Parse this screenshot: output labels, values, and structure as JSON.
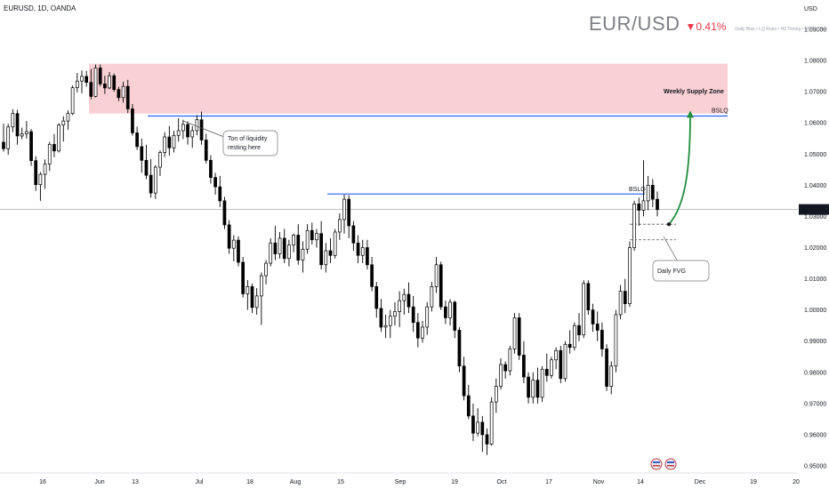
{
  "header": {
    "symbol_line": "EURUSD, 1D, OANDA",
    "pair": "EUR/USD",
    "change": "▼0.41%",
    "tags": "Daily Bias • LQ Runs • HZ Timing • MSS • Disc",
    "currency": "USD"
  },
  "colors": {
    "up": "#ffffff",
    "down": "#000000",
    "wick": "#000000",
    "supply_zone": "#f9d0d3",
    "bslq_line": "#2962ff",
    "arrow": "#1e8e3e",
    "price_badge": "#131722"
  },
  "annotations": {
    "supply_zone_label": "Weekly Supply Zone",
    "bslq_upper": "BSLQ",
    "bslq_lower": "BSLQ",
    "liquidity_note_line1": "Ton of liquidity",
    "liquidity_note_line2": "resting here",
    "fvg_note": "Daily FVG",
    "last_price": "1.03223"
  },
  "chart_data": {
    "type": "candlestick",
    "y_axis": {
      "range": [
        0.947,
        1.1
      ],
      "ticks": [
        "1.09000",
        "1.08000",
        "1.07000",
        "1.06000",
        "1.05000",
        "1.04000",
        "1.03000",
        "1.02000",
        "1.01000",
        "1.00000",
        "0.99000",
        "0.98000",
        "0.97000",
        "0.96000",
        "0.95000"
      ]
    },
    "x_axis": {
      "ticks": [
        "16",
        "Jun",
        "13",
        "Jul",
        "18",
        "Aug",
        "15",
        "Sep",
        "19",
        "Oct",
        "17",
        "Nov",
        "14",
        "Dec",
        "19",
        "20"
      ]
    },
    "supply_zone": [
      1.063,
      1.079
    ],
    "bslq_upper_level": 1.0622,
    "bslq_lower_level": 1.0372,
    "fvg_levels": [
      1.0275,
      1.0225
    ],
    "projection_target": 1.0645,
    "last_price": 1.03223,
    "candles": [
      [
        1.0538,
        1.0597,
        1.0508,
        1.0517
      ],
      [
        1.0517,
        1.0597,
        1.0498,
        1.0587
      ],
      [
        1.0587,
        1.0644,
        1.057,
        1.063
      ],
      [
        1.063,
        1.0642,
        1.053,
        1.0558
      ],
      [
        1.0558,
        1.0585,
        1.0548,
        1.0565
      ],
      [
        1.0565,
        1.0606,
        1.055,
        1.0572
      ],
      [
        1.0572,
        1.058,
        1.0462,
        1.0479
      ],
      [
        1.0479,
        1.0493,
        1.0382,
        1.0402
      ],
      [
        1.0402,
        1.0442,
        1.035,
        1.0435
      ],
      [
        1.0435,
        1.0483,
        1.0388,
        1.0468
      ],
      [
        1.0468,
        1.0539,
        1.0446,
        1.0531
      ],
      [
        1.0531,
        1.0564,
        1.049,
        1.051
      ],
      [
        1.051,
        1.0599,
        1.0505,
        1.0593
      ],
      [
        1.0593,
        1.0621,
        1.054,
        1.0606
      ],
      [
        1.0606,
        1.064,
        1.0578,
        1.063
      ],
      [
        1.063,
        1.072,
        1.0625,
        1.0713
      ],
      [
        1.0713,
        1.076,
        1.0698,
        1.0734
      ],
      [
        1.0734,
        1.0768,
        1.0695,
        1.0749
      ],
      [
        1.0749,
        1.0767,
        1.0716,
        1.073
      ],
      [
        1.073,
        1.0773,
        1.0676,
        1.0685
      ],
      [
        1.0685,
        1.0787,
        1.0682,
        1.0776
      ],
      [
        1.0776,
        1.0787,
        1.0717,
        1.0725
      ],
      [
        1.0725,
        1.0751,
        1.0693,
        1.0712
      ],
      [
        1.0712,
        1.0763,
        1.0708,
        1.0751
      ],
      [
        1.0751,
        1.0758,
        1.07,
        1.0707
      ],
      [
        1.0707,
        1.0716,
        1.067,
        1.0681
      ],
      [
        1.0681,
        1.0732,
        1.0665,
        1.0717
      ],
      [
        1.0717,
        1.0738,
        1.0632,
        1.0645
      ],
      [
        1.0645,
        1.066,
        1.0559,
        1.0568
      ],
      [
        1.0568,
        1.0588,
        1.0513,
        1.0524
      ],
      [
        1.0524,
        1.055,
        1.044,
        1.048
      ],
      [
        1.048,
        1.053,
        1.042,
        1.0432
      ],
      [
        1.0432,
        1.0484,
        1.036,
        1.0375
      ],
      [
        1.0375,
        1.0465,
        1.0356,
        1.0458
      ],
      [
        1.0458,
        1.0512,
        1.043,
        1.0505
      ],
      [
        1.0505,
        1.057,
        1.049,
        1.0555
      ],
      [
        1.0555,
        1.059,
        1.0495,
        1.052
      ],
      [
        1.052,
        1.0575,
        1.0505,
        1.056
      ],
      [
        1.056,
        1.0615,
        1.054,
        1.0575
      ],
      [
        1.0575,
        1.061,
        1.0548,
        1.0595
      ],
      [
        1.0595,
        1.0605,
        1.053,
        1.0555
      ],
      [
        1.0555,
        1.059,
        1.052,
        1.0575
      ],
      [
        1.0575,
        1.0625,
        1.056,
        1.061
      ],
      [
        1.061,
        1.0636,
        1.053,
        1.0545
      ],
      [
        1.0545,
        1.0565,
        1.047,
        1.048
      ],
      [
        1.048,
        1.0496,
        1.0405,
        1.0425
      ],
      [
        1.0425,
        1.044,
        1.037,
        1.0395
      ],
      [
        1.0395,
        1.043,
        1.033,
        1.035
      ],
      [
        1.035,
        1.0363,
        1.026,
        1.0273
      ],
      [
        1.0273,
        1.0288,
        1.018,
        1.0198
      ],
      [
        1.0198,
        1.024,
        1.0156,
        1.0224
      ],
      [
        1.0224,
        1.0236,
        1.014,
        1.0153
      ],
      [
        1.0153,
        1.017,
        1.004,
        1.0052
      ],
      [
        1.0052,
        1.0096,
        1.0,
        1.0075
      ],
      [
        1.0075,
        1.0085,
        0.999,
        1.0008
      ],
      [
        1.0008,
        1.007,
        0.9985,
        1.0045
      ],
      [
        1.0045,
        1.012,
        0.9952,
        1.011
      ],
      [
        1.011,
        1.016,
        1.0082,
        1.015
      ],
      [
        1.015,
        1.023,
        1.014,
        1.0215
      ],
      [
        1.0215,
        1.027,
        1.016,
        1.018
      ],
      [
        1.018,
        1.025,
        1.0165,
        1.023
      ],
      [
        1.023,
        1.026,
        1.015,
        1.0165
      ],
      [
        1.0165,
        1.0225,
        1.014,
        1.0208
      ],
      [
        1.0208,
        1.0245,
        1.0185,
        1.024
      ],
      [
        1.024,
        1.0275,
        1.0145,
        1.016
      ],
      [
        1.016,
        1.022,
        1.012,
        1.0195
      ],
      [
        1.0195,
        1.0275,
        1.018,
        1.0255
      ],
      [
        1.0255,
        1.028,
        1.021,
        1.0225
      ],
      [
        1.0225,
        1.026,
        1.02,
        1.0245
      ],
      [
        1.0245,
        1.0285,
        1.013,
        1.0145
      ],
      [
        1.0145,
        1.0215,
        1.012,
        1.019
      ],
      [
        1.019,
        1.023,
        1.015,
        1.0175
      ],
      [
        1.0175,
        1.026,
        1.0165,
        1.025
      ],
      [
        1.025,
        1.031,
        1.0225,
        1.029
      ],
      [
        1.029,
        1.037,
        1.0245,
        1.0355
      ],
      [
        1.0355,
        1.0368,
        1.023,
        1.027
      ],
      [
        1.027,
        1.0285,
        1.019,
        1.0215
      ],
      [
        1.0215,
        1.024,
        1.015,
        1.0175
      ],
      [
        1.0175,
        1.0225,
        1.015,
        1.02
      ],
      [
        1.02,
        1.0225,
        1.013,
        1.0145
      ],
      [
        1.0145,
        1.017,
        1.006,
        1.0075
      ],
      [
        1.0075,
        1.009,
        0.9975,
        1.0005
      ],
      [
        1.0005,
        1.0035,
        0.993,
        0.9945
      ],
      [
        0.9945,
        0.9985,
        0.991,
        0.995
      ],
      [
        0.995,
        1.0,
        0.991,
        0.998
      ],
      [
        0.998,
        1.0025,
        0.995,
        0.9995
      ],
      [
        0.9995,
        1.006,
        0.9945,
        1.003
      ],
      [
        1.003,
        1.0068,
        0.9985,
        1.005
      ],
      [
        1.005,
        1.0088,
        0.999,
        1.001
      ],
      [
        1.001,
        1.0045,
        0.993,
        0.996
      ],
      [
        0.996,
        0.999,
        0.988,
        0.991
      ],
      [
        0.991,
        0.9965,
        0.9895,
        0.9945
      ],
      [
        0.9945,
        1.0025,
        0.992,
        1.001
      ],
      [
        1.001,
        1.009,
        0.9995,
        1.0075
      ],
      [
        1.0075,
        1.017,
        1.0055,
        1.0145
      ],
      [
        1.0145,
        1.0155,
        1.0,
        1.001
      ],
      [
        1.001,
        1.003,
        0.9955,
        0.9975
      ],
      [
        0.9975,
        1.0035,
        0.995,
        1.0025
      ],
      [
        1.0025,
        1.003,
        0.991,
        0.9935
      ],
      [
        0.9935,
        0.9945,
        0.98,
        0.982
      ],
      [
        0.982,
        0.985,
        0.971,
        0.9725
      ],
      [
        0.9725,
        0.976,
        0.965,
        0.966
      ],
      [
        0.966,
        0.97,
        0.958,
        0.9605
      ],
      [
        0.9605,
        0.9685,
        0.9595,
        0.964
      ],
      [
        0.964,
        0.966,
        0.9545,
        0.96
      ],
      [
        0.96,
        0.962,
        0.9535,
        0.957
      ],
      [
        0.957,
        0.972,
        0.9565,
        0.9705
      ],
      [
        0.9705,
        0.978,
        0.967,
        0.9755
      ],
      [
        0.9755,
        0.9845,
        0.9745,
        0.9825
      ],
      [
        0.9825,
        0.9835,
        0.978,
        0.9805
      ],
      [
        0.9805,
        0.9885,
        0.979,
        0.9875
      ],
      [
        0.9875,
        0.999,
        0.986,
        0.9975
      ],
      [
        0.9975,
        0.999,
        0.984,
        0.9855
      ],
      [
        0.9855,
        0.99,
        0.9765,
        0.9785
      ],
      [
        0.9785,
        0.98,
        0.97,
        0.972
      ],
      [
        0.972,
        0.98,
        0.97,
        0.9775
      ],
      [
        0.9775,
        0.9815,
        0.97,
        0.972
      ],
      [
        0.972,
        0.982,
        0.9705,
        0.981
      ],
      [
        0.981,
        0.986,
        0.977,
        0.979
      ],
      [
        0.979,
        0.985,
        0.978,
        0.984
      ],
      [
        0.984,
        0.988,
        0.981,
        0.987
      ],
      [
        0.987,
        0.9885,
        0.9765,
        0.978
      ],
      [
        0.978,
        0.99,
        0.977,
        0.989
      ],
      [
        0.989,
        0.9935,
        0.986,
        0.988
      ],
      [
        0.988,
        0.996,
        0.987,
        0.995
      ],
      [
        0.995,
        0.999,
        0.99,
        0.992
      ],
      [
        0.992,
        1.0095,
        0.991,
        1.0085
      ],
      [
        1.0085,
        1.0095,
        0.9985,
        1.0
      ],
      [
        1.0,
        1.002,
        0.993,
        0.9955
      ],
      [
        0.9955,
        0.9995,
        0.99,
        0.9935
      ],
      [
        0.9935,
        0.996,
        0.985,
        0.9875
      ],
      [
        0.9875,
        0.989,
        0.974,
        0.9755
      ],
      [
        0.9755,
        0.9835,
        0.973,
        0.982
      ],
      [
        0.982,
        1.0,
        0.98,
        0.9985
      ],
      [
        0.9985,
        1.008,
        0.997,
        1.006
      ],
      [
        1.006,
        1.01,
        0.999,
        1.002
      ],
      [
        1.002,
        1.022,
        1.001,
        1.02
      ],
      [
        1.02,
        1.035,
        1.019,
        1.034
      ],
      [
        1.034,
        1.036,
        1.027,
        1.032
      ],
      [
        1.032,
        1.048,
        1.03,
        1.035
      ],
      [
        1.035,
        1.043,
        1.032,
        1.04
      ],
      [
        1.04,
        1.042,
        1.033,
        1.0355
      ],
      [
        1.0355,
        1.038,
        1.03,
        1.0322
      ]
    ]
  }
}
